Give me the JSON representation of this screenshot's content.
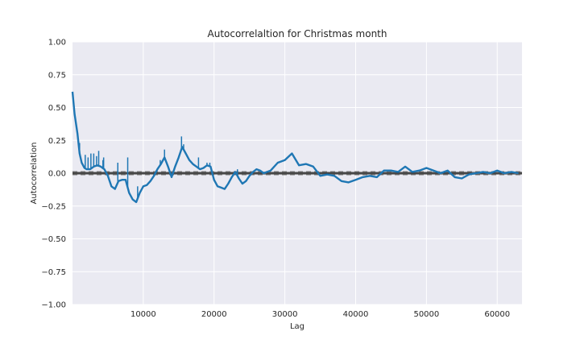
{
  "chart_data": {
    "type": "line",
    "title": "Autocorrelaltion for Christmas month",
    "xlabel": "Lag",
    "ylabel": "Autocorrelation",
    "xlim": [
      0,
      63500
    ],
    "ylim": [
      -1.0,
      1.0
    ],
    "x_ticks": [
      10000,
      20000,
      30000,
      40000,
      50000,
      60000
    ],
    "x_tick_labels": [
      "10000",
      "20000",
      "30000",
      "40000",
      "50000",
      "60000"
    ],
    "y_ticks": [
      1.0,
      0.75,
      0.5,
      0.25,
      0.0,
      -0.25,
      -0.5,
      -0.75,
      -1.0
    ],
    "y_tick_labels": [
      "1.00",
      "0.75",
      "0.50",
      "0.25",
      "0.00",
      "−0.25",
      "−0.50",
      "−0.75",
      "−1.00"
    ],
    "grid": true,
    "confidence_lines": [
      0.008,
      -0.008,
      0.011,
      -0.011
    ],
    "series": [
      {
        "color": "#1f77b4",
        "x": [
          0,
          300,
          700,
          1000,
          1300,
          1700,
          2000,
          2500,
          3000,
          3500,
          4000,
          4500,
          5000,
          5500,
          6000,
          6500,
          7000,
          7500,
          8000,
          8500,
          9000,
          9500,
          10000,
          10500,
          11000,
          11500,
          12000,
          12500,
          13000,
          13500,
          14000,
          14500,
          15000,
          15500,
          16000,
          16500,
          17000,
          17500,
          18000,
          18500,
          19000,
          19500,
          20000,
          20500,
          21000,
          21500,
          22000,
          22500,
          23000,
          23500,
          24000,
          24500,
          25000,
          25500,
          26000,
          26500,
          27000,
          28000,
          29000,
          30000,
          31000,
          32000,
          33000,
          34000,
          35000,
          36000,
          37000,
          38000,
          39000,
          40000,
          41000,
          42000,
          43000,
          44000,
          45000,
          46000,
          47000,
          48000,
          49000,
          50000,
          51000,
          52000,
          53000,
          54000,
          55000,
          56000,
          57000,
          58000,
          59000,
          60000,
          61000,
          62000,
          63000
        ],
        "y": [
          0.62,
          0.45,
          0.3,
          0.15,
          0.08,
          0.04,
          0.03,
          0.03,
          0.05,
          0.06,
          0.05,
          0.03,
          -0.02,
          -0.1,
          -0.12,
          -0.06,
          -0.05,
          -0.05,
          -0.15,
          -0.2,
          -0.22,
          -0.15,
          -0.1,
          -0.09,
          -0.06,
          -0.02,
          0.03,
          0.07,
          0.12,
          0.05,
          -0.03,
          0.05,
          0.12,
          0.2,
          0.15,
          0.1,
          0.07,
          0.05,
          0.03,
          0.04,
          0.06,
          0.05,
          -0.05,
          -0.1,
          -0.11,
          -0.12,
          -0.08,
          -0.03,
          0.01,
          -0.04,
          -0.08,
          -0.06,
          -0.02,
          0.01,
          0.03,
          0.02,
          0.0,
          0.02,
          0.08,
          0.1,
          0.15,
          0.06,
          0.07,
          0.05,
          -0.02,
          -0.01,
          -0.02,
          -0.06,
          -0.07,
          -0.05,
          -0.03,
          -0.02,
          -0.03,
          0.02,
          0.02,
          0.01,
          0.05,
          0.01,
          0.02,
          0.04,
          0.02,
          0.0,
          0.02,
          -0.03,
          -0.04,
          -0.01,
          0.0,
          0.01,
          0.0,
          0.02,
          0.0,
          0.01,
          0.0
        ],
        "spikes": [
          {
            "x": 1000,
            "y": 0.23
          },
          {
            "x": 1800,
            "y": 0.14
          },
          {
            "x": 2200,
            "y": 0.12
          },
          {
            "x": 2600,
            "y": 0.15
          },
          {
            "x": 3000,
            "y": 0.15
          },
          {
            "x": 3400,
            "y": 0.13
          },
          {
            "x": 3700,
            "y": 0.17
          },
          {
            "x": 4300,
            "y": 0.1
          },
          {
            "x": 4400,
            "y": 0.12
          },
          {
            "x": 6400,
            "y": 0.08
          },
          {
            "x": 7800,
            "y": 0.12
          },
          {
            "x": 9200,
            "y": -0.1
          },
          {
            "x": 12400,
            "y": 0.1
          },
          {
            "x": 13000,
            "y": 0.18
          },
          {
            "x": 15400,
            "y": 0.28
          },
          {
            "x": 15700,
            "y": 0.22
          },
          {
            "x": 17800,
            "y": 0.12
          },
          {
            "x": 19000,
            "y": 0.08
          },
          {
            "x": 19400,
            "y": 0.08
          },
          {
            "x": 23300,
            "y": 0.03
          }
        ]
      }
    ]
  }
}
